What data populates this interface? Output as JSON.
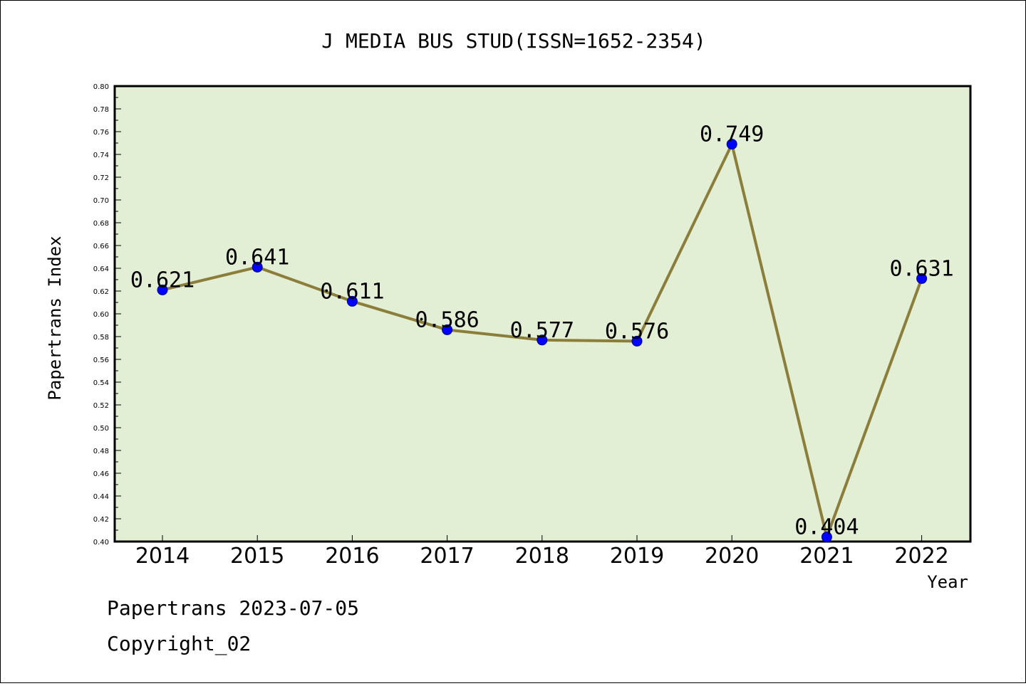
{
  "chart_data": {
    "type": "line",
    "title": "J MEDIA BUS STUD(ISSN=1652-2354)",
    "xlabel": "Year",
    "ylabel": "Papertrans Index",
    "ylim": [
      0.4,
      0.8
    ],
    "y_ticks": [
      "0.40",
      "0.42",
      "0.44",
      "0.46",
      "0.48",
      "0.50",
      "0.52",
      "0.54",
      "0.56",
      "0.58",
      "0.60",
      "0.62",
      "0.64",
      "0.66",
      "0.68",
      "0.70",
      "0.72",
      "0.74",
      "0.76",
      "0.78",
      "0.80"
    ],
    "categories": [
      "2014",
      "2015",
      "2016",
      "2017",
      "2018",
      "2019",
      "2020",
      "2021",
      "2022"
    ],
    "values": [
      0.621,
      0.641,
      0.611,
      0.586,
      0.577,
      0.576,
      0.749,
      0.404,
      0.631
    ],
    "data_labels": [
      "0.621",
      "0.641",
      "0.611",
      "0.586",
      "0.577",
      "0.576",
      "0.749",
      "0.404",
      "0.631"
    ],
    "grid": false,
    "colors": {
      "plot_background": "#e2efd5",
      "line": "#8b7d3a",
      "marker": "#0000ff"
    }
  },
  "footer": {
    "date_line": "Papertrans 2023-07-05",
    "copyright": "Copyright_02"
  }
}
